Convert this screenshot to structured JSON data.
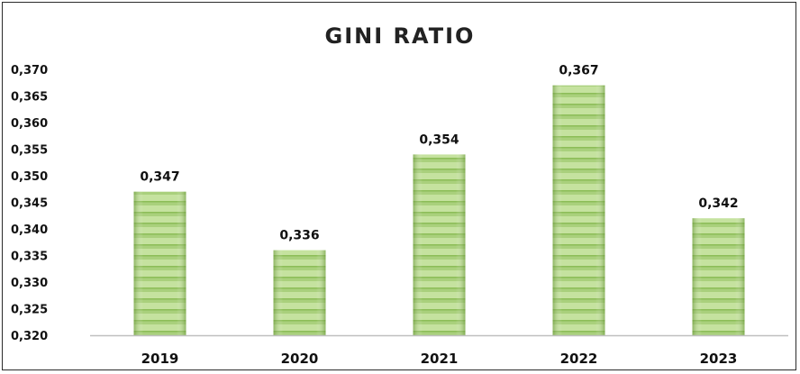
{
  "chart_data": {
    "type": "bar",
    "title": "GINI RATIO",
    "categories": [
      "2019",
      "2020",
      "2021",
      "2022",
      "2023"
    ],
    "values": [
      0.347,
      0.336,
      0.354,
      0.367,
      0.342
    ],
    "data_labels": [
      "0,347",
      "0,336",
      "0,354",
      "0,367",
      "0,342"
    ],
    "ylim": [
      0.32,
      0.37
    ],
    "yticks": [
      0.32,
      0.325,
      0.33,
      0.335,
      0.34,
      0.345,
      0.35,
      0.355,
      0.36,
      0.365,
      0.37
    ],
    "ytick_labels": [
      "0,320",
      "0,325",
      "0,330",
      "0,335",
      "0,340",
      "0,345",
      "0,350",
      "0,355",
      "0,360",
      "0,365",
      "0,370"
    ],
    "xlabel": "",
    "ylabel": "",
    "grid": false,
    "legend": "none",
    "colors": {
      "bar_light": "#c9e3a4",
      "bar_dark": "#7fb24a",
      "axis": "#bfbfbf"
    }
  }
}
